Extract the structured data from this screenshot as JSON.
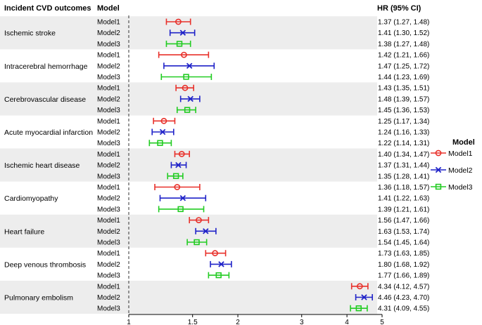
{
  "chart_data": {
    "type": "forest",
    "header": {
      "outcome": "Incident CVD outcomes",
      "model": "Model",
      "hr": "HR (95% CI)"
    },
    "x_scale": "log",
    "x_ticks": [
      1,
      1.5,
      2,
      3,
      4,
      5
    ],
    "x_tick_labels": [
      "1",
      "1.5",
      "2",
      "3",
      "4",
      "5"
    ],
    "reference_line": 1,
    "xlim": [
      1,
      5
    ],
    "legend": {
      "title": "Model",
      "position": "right",
      "entries": [
        {
          "name": "Model1",
          "color": "#e8302a",
          "marker": "circle"
        },
        {
          "name": "Model2",
          "color": "#1f22c8",
          "marker": "cross"
        },
        {
          "name": "Model3",
          "color": "#22cc22",
          "marker": "square"
        }
      ]
    },
    "groups": [
      {
        "outcome": "Ischemic stroke",
        "rows": [
          {
            "model": "Model1",
            "hr": 1.37,
            "lo": 1.27,
            "hi": 1.48,
            "text": "1.37 (1.27, 1.48)"
          },
          {
            "model": "Model2",
            "hr": 1.41,
            "lo": 1.3,
            "hi": 1.52,
            "text": "1.41 (1.30, 1.52)"
          },
          {
            "model": "Model3",
            "hr": 1.38,
            "lo": 1.27,
            "hi": 1.48,
            "text": "1.38 (1.27, 1.48)"
          }
        ]
      },
      {
        "outcome": "Intracerebral hemorrhage",
        "rows": [
          {
            "model": "Model1",
            "hr": 1.42,
            "lo": 1.21,
            "hi": 1.66,
            "text": "1.42 (1.21, 1.66)"
          },
          {
            "model": "Model2",
            "hr": 1.47,
            "lo": 1.25,
            "hi": 1.72,
            "text": "1.47 (1.25, 1.72)"
          },
          {
            "model": "Model3",
            "hr": 1.44,
            "lo": 1.23,
            "hi": 1.69,
            "text": "1.44 (1.23, 1.69)"
          }
        ]
      },
      {
        "outcome": "Cerebrovascular disease",
        "rows": [
          {
            "model": "Model1",
            "hr": 1.43,
            "lo": 1.35,
            "hi": 1.51,
            "text": "1.43 (1.35, 1.51)"
          },
          {
            "model": "Model2",
            "hr": 1.48,
            "lo": 1.39,
            "hi": 1.57,
            "text": "1.48 (1.39, 1.57)"
          },
          {
            "model": "Model3",
            "hr": 1.45,
            "lo": 1.36,
            "hi": 1.53,
            "text": "1.45 (1.36, 1.53)"
          }
        ]
      },
      {
        "outcome": "Acute myocardial infarction",
        "rows": [
          {
            "model": "Model1",
            "hr": 1.25,
            "lo": 1.17,
            "hi": 1.34,
            "text": "1.25 (1.17, 1.34)"
          },
          {
            "model": "Model2",
            "hr": 1.24,
            "lo": 1.16,
            "hi": 1.33,
            "text": "1.24 (1.16, 1.33)"
          },
          {
            "model": "Model3",
            "hr": 1.22,
            "lo": 1.14,
            "hi": 1.31,
            "text": "1.22 (1.14, 1.31)"
          }
        ]
      },
      {
        "outcome": "Ischemic heart disease",
        "rows": [
          {
            "model": "Model1",
            "hr": 1.4,
            "lo": 1.34,
            "hi": 1.47,
            "text": "1.40 (1.34, 1.47)"
          },
          {
            "model": "Model2",
            "hr": 1.37,
            "lo": 1.31,
            "hi": 1.44,
            "text": "1.37 (1.31, 1.44)"
          },
          {
            "model": "Model3",
            "hr": 1.35,
            "lo": 1.28,
            "hi": 1.41,
            "text": "1.35 (1.28, 1.41)"
          }
        ]
      },
      {
        "outcome": "Cardiomyopathy",
        "rows": [
          {
            "model": "Model1",
            "hr": 1.36,
            "lo": 1.18,
            "hi": 1.57,
            "text": "1.36 (1.18, 1.57)"
          },
          {
            "model": "Model2",
            "hr": 1.41,
            "lo": 1.22,
            "hi": 1.63,
            "text": "1.41 (1.22, 1.63)"
          },
          {
            "model": "Model3",
            "hr": 1.39,
            "lo": 1.21,
            "hi": 1.61,
            "text": "1.39 (1.21, 1.61)"
          }
        ]
      },
      {
        "outcome": "Heart failure",
        "rows": [
          {
            "model": "Model1",
            "hr": 1.56,
            "lo": 1.47,
            "hi": 1.66,
            "text": "1.56 (1.47, 1.66)"
          },
          {
            "model": "Model2",
            "hr": 1.63,
            "lo": 1.53,
            "hi": 1.74,
            "text": "1.63 (1.53, 1.74)"
          },
          {
            "model": "Model3",
            "hr": 1.54,
            "lo": 1.45,
            "hi": 1.64,
            "text": "1.54 (1.45, 1.64)"
          }
        ]
      },
      {
        "outcome": "Deep venous thrombosis",
        "rows": [
          {
            "model": "Model1",
            "hr": 1.73,
            "lo": 1.63,
            "hi": 1.85,
            "text": "1.73 (1.63, 1.85)"
          },
          {
            "model": "Model2",
            "hr": 1.8,
            "lo": 1.68,
            "hi": 1.92,
            "text": "1.80 (1.68, 1.92)"
          },
          {
            "model": "Model3",
            "hr": 1.77,
            "lo": 1.66,
            "hi": 1.89,
            "text": "1.77 (1.66, 1.89)"
          }
        ]
      },
      {
        "outcome": "Pulmonary embolism",
        "rows": [
          {
            "model": "Model1",
            "hr": 4.34,
            "lo": 4.12,
            "hi": 4.57,
            "text": "4.34 (4.12, 4.57)"
          },
          {
            "model": "Model2",
            "hr": 4.46,
            "lo": 4.23,
            "hi": 4.7,
            "text": "4.46 (4.23, 4.70)"
          },
          {
            "model": "Model3",
            "hr": 4.31,
            "lo": 4.09,
            "hi": 4.55,
            "text": "4.31 (4.09, 4.55)"
          }
        ]
      }
    ],
    "colors": {
      "band": "#ededed",
      "axis": "#000000",
      "refline": "#333333"
    }
  }
}
